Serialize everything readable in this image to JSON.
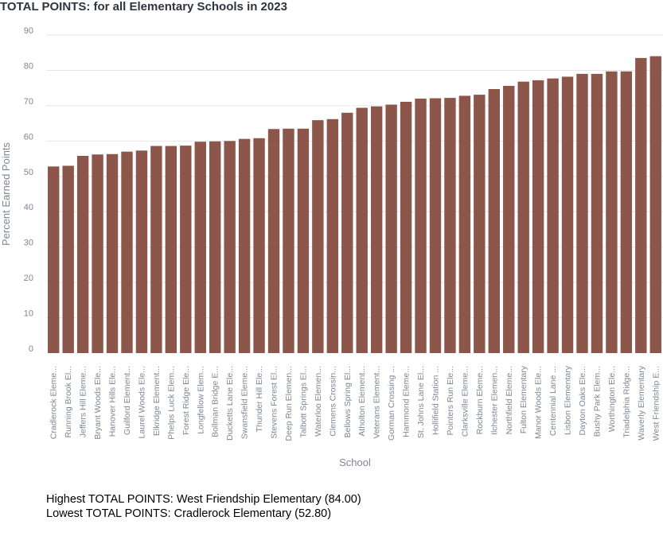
{
  "page": {
    "title": "TOTAL POINTS: for all Elementary Schools in 2023"
  },
  "summary": {
    "highest": "Highest TOTAL POINTS: West Friendship Elementary (84.00)",
    "lowest": "Lowest TOTAL POINTS: Cradlerock Elementary (52.80)"
  },
  "colors": {
    "bar": "#8c564b",
    "grid": "#e6e6ea",
    "axis_text": "#808495"
  },
  "chart_data": {
    "type": "bar",
    "title": "TOTAL POINTS: for all Elementary Schools in 2023",
    "xlabel": "School",
    "ylabel": "Percent Earned Points",
    "ylim": [
      0,
      90
    ],
    "yticks": [
      0,
      10,
      20,
      30,
      40,
      50,
      60,
      70,
      80,
      90
    ],
    "grid": true,
    "categories": [
      "Cradlerock Eleme...",
      "Running Brook El...",
      "Jeffers Hill Eleme...",
      "Bryant Woods Ele...",
      "Hanover Hills Ele...",
      "Guilford Element...",
      "Laurel Woods Ele...",
      "Elkridge Element...",
      "Phelps Luck Elem...",
      "Forest Ridge Ele...",
      "Longfellow Elem...",
      "Bollman Bridge E...",
      "Ducketts Lane Ele...",
      "Swansfield Eleme...",
      "Thunder Hill Ele...",
      "Stevens Forest El...",
      "Deep Run Elemen...",
      "Talbott Springs El...",
      "Waterloo Elemen...",
      "Clemens Crossin...",
      "Bellows Spring El...",
      "Atholton Element...",
      "Veterans Element...",
      "Gorman Crossing ...",
      "Hammond Eleme...",
      "St. Johns Lane El...",
      "Hollifield Station ...",
      "Pointers Run Ele...",
      "Clarksville Eleme...",
      "Rockburn Eleme...",
      "Ilchester Elemen...",
      "Northfield Eleme...",
      "Fulton Elementary",
      "Manor Woods Ele...",
      "Centennial Lane ...",
      "Lisbon Elementary",
      "Dayton Oaks Ele...",
      "Bushy Park Elem...",
      "Worthington Ele...",
      "Triadelphia Ridge...",
      "Waverly Elementary",
      "West Friendship E..."
    ],
    "values": [
      52.8,
      53.0,
      55.8,
      56.2,
      56.3,
      57.0,
      57.3,
      58.6,
      58.6,
      58.7,
      59.8,
      59.9,
      60.0,
      60.6,
      60.8,
      63.4,
      63.5,
      63.5,
      65.9,
      66.2,
      68.0,
      69.4,
      69.8,
      70.3,
      71.1,
      72.0,
      72.1,
      72.2,
      72.8,
      73.1,
      74.7,
      75.6,
      76.8,
      77.2,
      77.7,
      78.2,
      79.0,
      79.0,
      79.7,
      79.7,
      83.5,
      84.0
    ]
  }
}
